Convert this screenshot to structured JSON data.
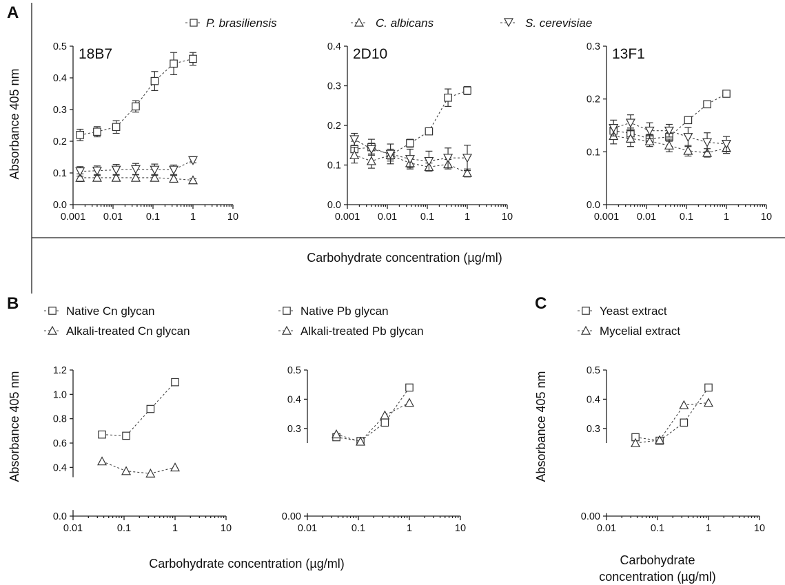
{
  "panels": {
    "A": {
      "letter": "A",
      "legend": [
        "P. brasiliensis",
        "C. albicans",
        "S. cerevisiae"
      ],
      "xlabel": "Carbohydrate concentration (µg/ml)",
      "ylabel": "Absorbance 405 nm"
    },
    "B": {
      "letter": "B",
      "xlabel": "Carbohydrate concentration (µg/ml)",
      "ylabel": "Absorbance 405 nm"
    },
    "C": {
      "letter": "C",
      "xlabel_line1": "Carbohydrate",
      "xlabel_line2": "concentration (µg/ml)",
      "ylabel": "Absorbance 405 nm"
    }
  },
  "chart_data": [
    {
      "type": "line",
      "panel": "A",
      "title": "18B7",
      "x_scale": "log",
      "xlim": [
        0.001,
        10
      ],
      "ylim": [
        0,
        0.5
      ],
      "x_ticks": [
        "0.001",
        "0.01",
        "0.1",
        "1",
        "10"
      ],
      "y_ticks": [
        "0.0",
        "0.1",
        "0.2",
        "0.3",
        "0.4",
        "0.5"
      ],
      "x": [
        0.0015,
        0.004,
        0.012,
        0.037,
        0.11,
        0.33,
        1
      ],
      "series": [
        {
          "name": "P. brasiliensis",
          "marker": "square",
          "values": [
            0.22,
            0.23,
            0.245,
            0.31,
            0.39,
            0.445,
            0.46
          ],
          "errors": [
            0.018,
            0.016,
            0.02,
            0.018,
            0.03,
            0.035,
            0.02
          ]
        },
        {
          "name": "C. albicans",
          "marker": "triangle-up",
          "values": [
            0.085,
            0.085,
            0.085,
            0.085,
            0.085,
            0.082,
            0.077
          ],
          "errors": [
            0.012,
            0.01,
            0.01,
            0.01,
            0.01,
            0.01,
            0.005
          ]
        },
        {
          "name": "S. cerevisiae",
          "marker": "triangle-down",
          "values": [
            0.105,
            0.107,
            0.11,
            0.112,
            0.11,
            0.11,
            0.14
          ],
          "errors": [
            0.015,
            0.015,
            0.017,
            0.018,
            0.018,
            0.015,
            0.008
          ]
        }
      ]
    },
    {
      "type": "line",
      "panel": "A",
      "title": "2D10",
      "x_scale": "log",
      "xlim": [
        0.001,
        10
      ],
      "ylim": [
        0,
        0.4
      ],
      "x_ticks": [
        "0.001",
        "0.01",
        "0.1",
        "1",
        "10"
      ],
      "y_ticks": [
        "0.0",
        "0.1",
        "0.2",
        "0.3",
        "0.4"
      ],
      "x": [
        0.0015,
        0.004,
        0.012,
        0.037,
        0.11,
        0.33,
        1
      ],
      "series": [
        {
          "name": "P. brasiliensis",
          "marker": "square",
          "values": [
            0.14,
            0.145,
            0.125,
            0.155,
            0.185,
            0.27,
            0.288
          ],
          "errors": [
            0.02,
            0.02,
            0.01,
            0.01,
            0.008,
            0.022,
            0.01
          ]
        },
        {
          "name": "C. albicans",
          "marker": "triangle-up",
          "values": [
            0.125,
            0.11,
            0.125,
            0.105,
            0.095,
            0.102,
            0.08
          ],
          "errors": [
            0.02,
            0.018,
            0.015,
            0.012,
            0.01,
            0.012,
            0.01
          ]
        },
        {
          "name": "S. cerevisiae",
          "marker": "triangle-down",
          "values": [
            0.165,
            0.14,
            0.128,
            0.115,
            0.11,
            0.118,
            0.118
          ],
          "errors": [
            0.015,
            0.015,
            0.025,
            0.025,
            0.025,
            0.025,
            0.032
          ]
        }
      ]
    },
    {
      "type": "line",
      "panel": "A",
      "title": "13F1",
      "x_scale": "log",
      "xlim": [
        0.001,
        10
      ],
      "ylim": [
        0,
        0.3
      ],
      "x_ticks": [
        "0.001",
        "0.01",
        "0.1",
        "1",
        "10"
      ],
      "y_ticks": [
        "0.0",
        "0.1",
        "0.2",
        "0.3"
      ],
      "x": [
        0.0015,
        0.004,
        0.012,
        0.037,
        0.11,
        0.33,
        1
      ],
      "series": [
        {
          "name": "P. brasiliensis",
          "marker": "square",
          "values": [
            0.14,
            0.135,
            0.125,
            0.128,
            0.16,
            0.19,
            0.21
          ],
          "errors": [
            0.01,
            0.01,
            0.008,
            0.008,
            0.006,
            0.005,
            0.004
          ]
        },
        {
          "name": "C. albicans",
          "marker": "triangle-up",
          "values": [
            0.13,
            0.125,
            0.12,
            0.112,
            0.102,
            0.098,
            0.107
          ],
          "errors": [
            0.015,
            0.015,
            0.01,
            0.012,
            0.01,
            0.008,
            0.01
          ]
        },
        {
          "name": "S. cerevisiae",
          "marker": "triangle-down",
          "values": [
            0.145,
            0.155,
            0.14,
            0.14,
            0.128,
            0.118,
            0.115
          ],
          "errors": [
            0.015,
            0.015,
            0.015,
            0.012,
            0.018,
            0.018,
            0.014
          ]
        }
      ]
    },
    {
      "type": "line",
      "panel": "B",
      "title": "",
      "x_scale": "log",
      "xlim": [
        0.01,
        10
      ],
      "ylim": [
        0,
        1.2
      ],
      "y_break": [
        0.05,
        0.32
      ],
      "x_ticks": [
        "0.01",
        "0.1",
        "1",
        "10"
      ],
      "y_ticks": [
        "0.0",
        "0.4",
        "0.6",
        "0.8",
        "1.0",
        "1.2"
      ],
      "legend": [
        "Native Cn glycan",
        "Alkali-treated Cn glycan"
      ],
      "x": [
        0.037,
        0.11,
        0.33,
        1
      ],
      "series": [
        {
          "name": "Native Cn glycan",
          "marker": "square",
          "values": [
            0.67,
            0.66,
            0.88,
            1.1
          ]
        },
        {
          "name": "Alkali-treated Cn glycan",
          "marker": "triangle-up",
          "values": [
            0.45,
            0.37,
            0.35,
            0.4
          ]
        }
      ]
    },
    {
      "type": "line",
      "panel": "B",
      "title": "",
      "x_scale": "log",
      "xlim": [
        0.01,
        10
      ],
      "ylim": [
        0,
        0.5
      ],
      "y_break": [
        0.01,
        0.25
      ],
      "x_ticks": [
        "0.01",
        "0.1",
        "1",
        "10"
      ],
      "y_ticks": [
        "0.00",
        "0.3",
        "0.4",
        "0.5"
      ],
      "legend": [
        "Native Pb glycan",
        "Alkali-treated Pb glycan"
      ],
      "x": [
        0.037,
        0.11,
        0.33,
        1
      ],
      "series": [
        {
          "name": "Native Pb glycan",
          "marker": "square",
          "values": [
            0.27,
            0.257,
            0.32,
            0.44
          ]
        },
        {
          "name": "Alkali-treated Pb glycan",
          "marker": "triangle-up",
          "values": [
            0.28,
            0.255,
            0.345,
            0.388
          ]
        }
      ]
    },
    {
      "type": "line",
      "panel": "C",
      "title": "",
      "x_scale": "log",
      "xlim": [
        0.01,
        10
      ],
      "ylim": [
        0,
        0.5
      ],
      "y_break": [
        0.01,
        0.25
      ],
      "x_ticks": [
        "0.01",
        "0.1",
        "1",
        "10"
      ],
      "y_ticks": [
        "0.00",
        "0.3",
        "0.4",
        "0.5"
      ],
      "legend": [
        "Yeast extract",
        "Mycelial extract"
      ],
      "x": [
        0.037,
        0.11,
        0.33,
        1
      ],
      "series": [
        {
          "name": "Yeast extract",
          "marker": "square",
          "values": [
            0.27,
            0.258,
            0.32,
            0.44
          ]
        },
        {
          "name": "Mycelial extract",
          "marker": "triangle-up",
          "values": [
            0.25,
            0.26,
            0.38,
            0.388
          ]
        }
      ]
    }
  ]
}
